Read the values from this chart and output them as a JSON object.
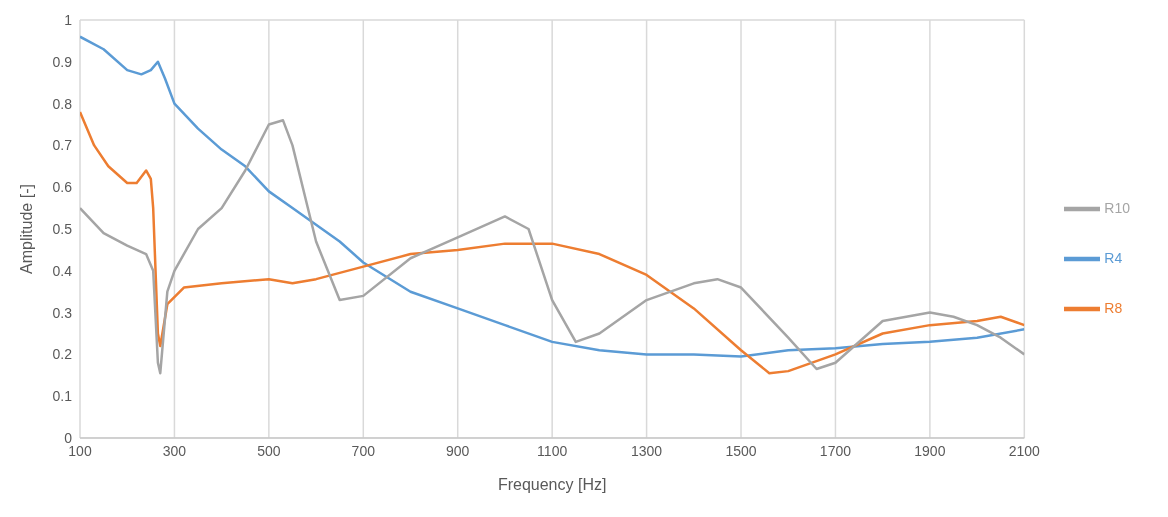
{
  "chart_data": {
    "type": "line",
    "xlabel": "Frequency [Hz]",
    "ylabel": "Amplitude [-]",
    "xlim": [
      100,
      2100
    ],
    "xticks": [
      100,
      300,
      500,
      700,
      900,
      1100,
      1300,
      1500,
      1700,
      1900,
      2100
    ],
    "ylim": [
      0,
      1
    ],
    "yticks": [
      0,
      0.1,
      0.2,
      0.3,
      0.4,
      0.5,
      0.6,
      0.7,
      0.8,
      0.9,
      1
    ],
    "grid": true,
    "legend": "right",
    "marker": "none",
    "line_style": "solid",
    "series": [
      {
        "name": "R4",
        "color": "#5b9bd5",
        "x": [
          100,
          150,
          200,
          230,
          250,
          265,
          280,
          300,
          350,
          400,
          450,
          500,
          550,
          600,
          650,
          700,
          800,
          900,
          1000,
          1100,
          1200,
          1300,
          1400,
          1500,
          1600,
          1700,
          1800,
          1900,
          2000,
          2100
        ],
        "values": [
          0.96,
          0.93,
          0.88,
          0.87,
          0.88,
          0.9,
          0.86,
          0.8,
          0.74,
          0.69,
          0.65,
          0.59,
          0.55,
          0.51,
          0.47,
          0.42,
          0.35,
          0.31,
          0.27,
          0.23,
          0.21,
          0.2,
          0.2,
          0.195,
          0.21,
          0.215,
          0.225,
          0.23,
          0.24,
          0.26
        ]
      },
      {
        "name": "R8",
        "color": "#ed7d31",
        "x": [
          100,
          130,
          160,
          200,
          220,
          240,
          250,
          255,
          265,
          270,
          285,
          320,
          400,
          500,
          550,
          600,
          700,
          800,
          900,
          1000,
          1100,
          1200,
          1300,
          1400,
          1500,
          1560,
          1600,
          1700,
          1800,
          1900,
          2000,
          2050,
          2100
        ],
        "values": [
          0.78,
          0.7,
          0.65,
          0.61,
          0.61,
          0.64,
          0.62,
          0.55,
          0.25,
          0.22,
          0.32,
          0.36,
          0.37,
          0.38,
          0.37,
          0.38,
          0.41,
          0.44,
          0.45,
          0.465,
          0.465,
          0.44,
          0.39,
          0.31,
          0.21,
          0.155,
          0.16,
          0.2,
          0.25,
          0.27,
          0.28,
          0.29,
          0.27
        ]
      },
      {
        "name": "R10",
        "color": "#a5a5a5",
        "x": [
          100,
          150,
          200,
          240,
          255,
          265,
          270,
          285,
          300,
          350,
          400,
          450,
          500,
          530,
          550,
          600,
          650,
          700,
          800,
          900,
          1000,
          1050,
          1100,
          1150,
          1200,
          1300,
          1400,
          1450,
          1500,
          1600,
          1660,
          1700,
          1800,
          1900,
          1950,
          2000,
          2050,
          2100
        ],
        "values": [
          0.55,
          0.49,
          0.46,
          0.44,
          0.4,
          0.18,
          0.155,
          0.35,
          0.4,
          0.5,
          0.55,
          0.64,
          0.75,
          0.76,
          0.7,
          0.47,
          0.33,
          0.34,
          0.43,
          0.48,
          0.53,
          0.5,
          0.33,
          0.23,
          0.25,
          0.33,
          0.37,
          0.38,
          0.36,
          0.24,
          0.165,
          0.18,
          0.28,
          0.3,
          0.29,
          0.27,
          0.24,
          0.2
        ]
      }
    ]
  }
}
